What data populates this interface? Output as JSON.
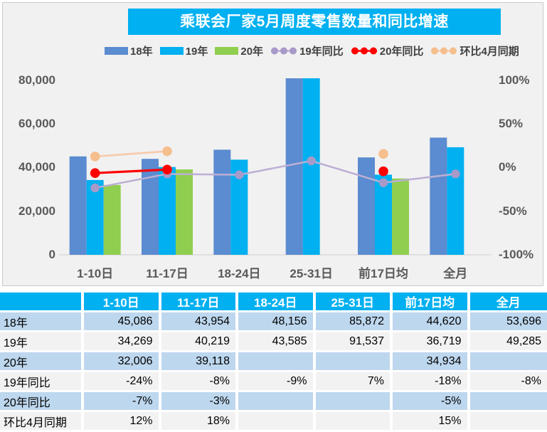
{
  "title": "乘联会厂家5月周度零售数量和同比增速",
  "chart_data": {
    "type": "bar+line-combo",
    "categories": [
      "1-10日",
      "11-17日",
      "18-24日",
      "25-31日",
      "前17日均",
      "全月"
    ],
    "bar_series": [
      {
        "name": "18年",
        "color": "#5B8BD0",
        "values": [
          45086,
          43954,
          48156,
          85872,
          44620,
          53696
        ]
      },
      {
        "name": "19年",
        "color": "#00B0F0",
        "values": [
          34269,
          40219,
          43585,
          91537,
          36719,
          49285
        ]
      },
      {
        "name": "20年",
        "color": "#90CE4F",
        "values": [
          32006,
          39118,
          null,
          null,
          34934,
          null
        ]
      }
    ],
    "line_series": [
      {
        "name": "19年同比",
        "line_color": "#BCAFD4",
        "dot_color": "#A79AC8",
        "values_pct": [
          -24,
          -8,
          -9,
          7,
          -18,
          -8
        ]
      },
      {
        "name": "20年同比",
        "line_color": "#FF0000",
        "dot_color": "#FF0000",
        "values_pct": [
          -7,
          -3,
          null,
          null,
          -5,
          null
        ]
      },
      {
        "name": "环比4月同期",
        "line_color": "#F8CBAD",
        "dot_color": "#F5BE8D",
        "values_pct": [
          12,
          18,
          null,
          null,
          15,
          null
        ]
      }
    ],
    "left_axis": {
      "min": 0,
      "max": 80000,
      "ticks": [
        "0",
        "20,000",
        "40,000",
        "60,000",
        "80,000"
      ]
    },
    "right_axis": {
      "min": -100,
      "max": 100,
      "ticks": [
        "-100%",
        "-50%",
        "0%",
        "50%",
        "100%"
      ]
    },
    "legend_position": "top",
    "grid": false
  },
  "table": {
    "header": [
      "",
      "1-10日",
      "11-17日",
      "18-24日",
      "25-31日",
      "前17日均",
      "全月"
    ],
    "rows": [
      {
        "label": "18年",
        "cells": [
          "45,086",
          "43,954",
          "48,156",
          "85,872",
          "44,620",
          "53,696"
        ]
      },
      {
        "label": "19年",
        "cells": [
          "34,269",
          "40,219",
          "43,585",
          "91,537",
          "36,719",
          "49,285"
        ]
      },
      {
        "label": "20年",
        "cells": [
          "32,006",
          "39,118",
          "",
          "",
          "34,934",
          ""
        ]
      },
      {
        "label": "19年同比",
        "cells": [
          "-24%",
          "-8%",
          "-9%",
          "7%",
          "-18%",
          "-8%"
        ]
      },
      {
        "label": "20年同比",
        "cells": [
          "-7%",
          "-3%",
          "",
          "",
          "-5%",
          ""
        ]
      },
      {
        "label": "环比4月同期",
        "cells": [
          "12%",
          "18%",
          "",
          "",
          "15%",
          ""
        ]
      }
    ]
  },
  "colors": {
    "title_bg": "#00B0F0",
    "title_text": "#FFFFFF",
    "chart_bg": "#F1F1F1",
    "chart_border": "#C9C9C9",
    "axis_text": "#595959",
    "axis_line": "#D9D9D9",
    "table_header_bg": "#00B0F0",
    "row_blue": "#BDD7EE",
    "row_gray": "#F2F2F2"
  }
}
